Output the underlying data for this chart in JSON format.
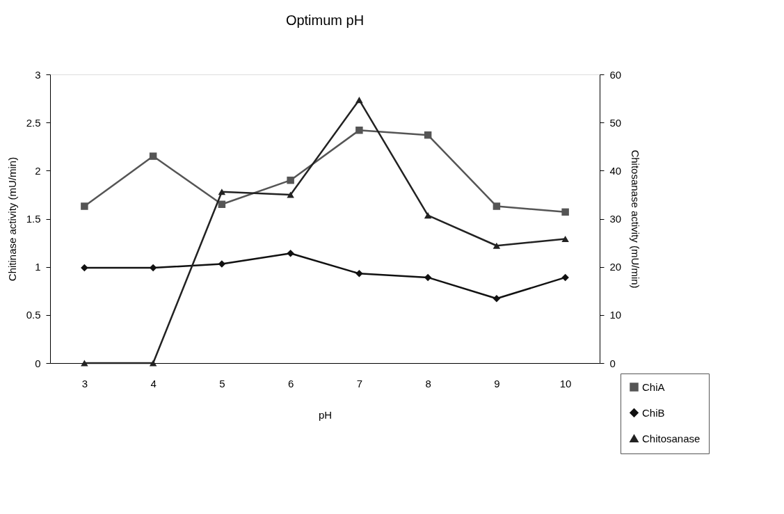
{
  "chart_data": {
    "type": "line",
    "title": "Optimum pH",
    "xlabel": "pH",
    "ylabel": "Chitinase activity (mU/min)",
    "y2label": "Chitosanase activity (mU/min)",
    "categories": [
      "3",
      "4",
      "5",
      "6",
      "7",
      "8",
      "9",
      "10"
    ],
    "series": [
      {
        "name": "ChiA",
        "color": "#555555",
        "marker": "square",
        "values": [
          1.63,
          2.15,
          1.65,
          1.9,
          2.42,
          2.37,
          1.63,
          1.57
        ]
      },
      {
        "name": "ChiB",
        "color": "#111111",
        "marker": "diamond",
        "values": [
          0.99,
          0.99,
          1.03,
          1.14,
          0.93,
          0.89,
          0.67,
          0.89
        ]
      },
      {
        "name": "Chitosanase",
        "color": "#222222",
        "marker": "triangle",
        "axis": "y2",
        "values": [
          0,
          0,
          35.6,
          35,
          54.7,
          30.7,
          24.4,
          25.8
        ]
      }
    ],
    "ylim": [
      0,
      3
    ],
    "yticks": [
      0,
      0.5,
      1,
      1.5,
      2,
      2.5,
      3
    ],
    "y2lim": [
      0,
      60
    ],
    "y2ticks": [
      0,
      10,
      20,
      30,
      40,
      50,
      60
    ],
    "grid": false,
    "legend": "bottom right",
    "line_style": "solid"
  }
}
